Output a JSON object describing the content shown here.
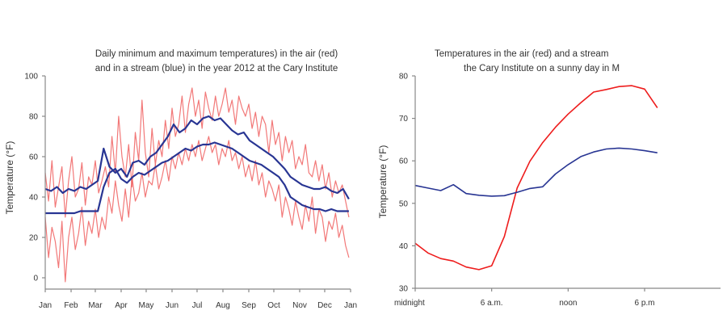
{
  "chart_data": [
    {
      "type": "line",
      "title_lines": [
        "Daily minimum and maximum temperatures) in the air (red)",
        "and in a stream (blue) in the year 2012 at the Cary Institute"
      ],
      "xlabel": "",
      "ylabel": "Temperature (°F)",
      "ylim": [
        0,
        100
      ],
      "yticks": [
        0,
        20,
        40,
        60,
        80,
        100
      ],
      "xlim_days": [
        0,
        366
      ],
      "xticks": [
        {
          "label": "Jan",
          "day": 0
        },
        {
          "label": "Feb",
          "day": 31
        },
        {
          "label": "Mar",
          "day": 60
        },
        {
          "label": "Apr",
          "day": 91
        },
        {
          "label": "May",
          "day": 121
        },
        {
          "label": "Jun",
          "day": 152
        },
        {
          "label": "Jul",
          "day": 182
        },
        {
          "label": "Aug",
          "day": 213
        },
        {
          "label": "Sep",
          "day": 244
        },
        {
          "label": "Oct",
          "day": 274
        },
        {
          "label": "Nov",
          "day": 305
        },
        {
          "label": "Dec",
          "day": 335
        },
        {
          "label": "Jan",
          "day": 366
        }
      ],
      "grid": false,
      "series": [
        {
          "name": "Air maximum",
          "color": "#f06060",
          "step_days": 4,
          "values": [
            52,
            38,
            58,
            35,
            45,
            55,
            30,
            48,
            60,
            40,
            44,
            57,
            36,
            50,
            46,
            58,
            42,
            48,
            55,
            45,
            70,
            52,
            80,
            60,
            50,
            66,
            45,
            72,
            58,
            88,
            62,
            50,
            74,
            56,
            68,
            60,
            78,
            64,
            84,
            70,
            76,
            90,
            72,
            86,
            94,
            80,
            88,
            74,
            92,
            84,
            78,
            90,
            80,
            86,
            94,
            82,
            88,
            76,
            90,
            84,
            80,
            86,
            74,
            82,
            70,
            80,
            76,
            62,
            78,
            66,
            72,
            58,
            70,
            62,
            68,
            54,
            60,
            56,
            66,
            52,
            50,
            58,
            48,
            56,
            44,
            52,
            40,
            48,
            42,
            46,
            38,
            30
          ]
        },
        {
          "name": "Air minimum",
          "color": "#f06060",
          "step_days": 4,
          "values": [
            30,
            10,
            25,
            18,
            5,
            28,
            -2,
            20,
            30,
            14,
            22,
            35,
            16,
            28,
            22,
            34,
            20,
            30,
            24,
            40,
            32,
            48,
            36,
            28,
            44,
            30,
            50,
            38,
            42,
            52,
            40,
            48,
            46,
            56,
            44,
            50,
            58,
            48,
            60,
            54,
            62,
            56,
            64,
            58,
            66,
            60,
            68,
            58,
            64,
            70,
            62,
            66,
            56,
            64,
            60,
            68,
            58,
            62,
            54,
            60,
            50,
            56,
            48,
            58,
            46,
            52,
            40,
            48,
            44,
            38,
            46,
            30,
            40,
            34,
            26,
            38,
            30,
            24,
            36,
            28,
            40,
            22,
            34,
            30,
            18,
            28,
            24,
            32,
            20,
            26,
            16,
            10
          ]
        },
        {
          "name": "Stream maximum",
          "color": "#283593",
          "step_days": 7,
          "values": [
            44,
            43,
            45,
            42,
            44,
            43,
            45,
            44,
            46,
            48,
            64,
            55,
            52,
            54,
            50,
            57,
            58,
            56,
            60,
            62,
            66,
            70,
            76,
            72,
            74,
            78,
            76,
            79,
            80,
            78,
            79,
            76,
            73,
            71,
            72,
            68,
            66,
            64,
            62,
            60,
            57,
            54,
            50,
            48,
            46,
            45,
            44,
            44,
            45,
            43,
            42,
            44,
            39
          ]
        },
        {
          "name": "Stream minimum",
          "color": "#283593",
          "step_days": 7,
          "values": [
            32,
            32,
            32,
            32,
            32,
            32,
            33,
            33,
            33,
            33,
            45,
            52,
            54,
            49,
            47,
            50,
            52,
            51,
            53,
            55,
            57,
            58,
            60,
            62,
            64,
            63,
            65,
            66,
            66,
            67,
            66,
            65,
            64,
            62,
            60,
            58,
            57,
            56,
            54,
            52,
            50,
            46,
            40,
            38,
            36,
            35,
            34,
            34,
            33,
            34,
            33,
            33,
            33
          ]
        }
      ]
    },
    {
      "type": "line",
      "title_lines": [
        "Temperatures in the air (red) and a stream",
        "the Cary Institute on a sunny day in M"
      ],
      "xlabel": "",
      "ylabel": "Temperature (°F)",
      "ylim": [
        30,
        80
      ],
      "yticks": [
        30,
        40,
        50,
        60,
        70,
        80
      ],
      "xlim_hours": [
        0,
        30
      ],
      "xticks": [
        {
          "label": "midnight",
          "hour": 0
        },
        {
          "label": "6 a.m.",
          "hour": 6
        },
        {
          "label": "noon",
          "hour": 12
        },
        {
          "label": "6 p.m",
          "hour": 18
        }
      ],
      "grid": false,
      "x_hours": [
        0,
        1,
        2,
        3,
        4,
        5,
        6,
        7,
        8,
        9,
        10,
        11,
        12,
        13,
        14,
        15,
        16,
        17,
        18,
        19
      ],
      "series": [
        {
          "name": "Air",
          "color": "#ee1c1c",
          "values": [
            40.6,
            38.3,
            37.0,
            36.4,
            35.0,
            34.4,
            35.3,
            42.2,
            53.6,
            59.9,
            64.3,
            67.9,
            71.0,
            73.7,
            76.2,
            76.8,
            77.5,
            77.7,
            76.9,
            72.5
          ]
        },
        {
          "name": "Stream",
          "color": "#283593",
          "values": [
            54.2,
            53.6,
            53.0,
            54.4,
            52.3,
            51.9,
            51.7,
            51.8,
            52.6,
            53.5,
            53.9,
            56.9,
            59.1,
            61.0,
            62.1,
            62.8,
            63.0,
            62.8,
            62.4,
            61.9
          ]
        }
      ]
    }
  ]
}
